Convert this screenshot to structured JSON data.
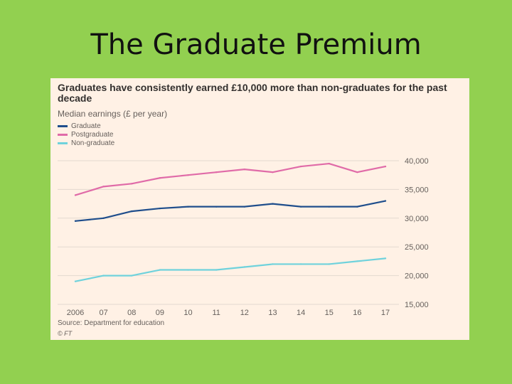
{
  "slide": {
    "title": "The Graduate Premium"
  },
  "colors": {
    "background": "#92d050",
    "card": "#fff1e5",
    "graduate": "#1f4e8c",
    "postgraduate": "#e06ba8",
    "non_graduate": "#6fd2dc"
  },
  "chart_data": {
    "type": "line",
    "title": "Graduates have consistently earned £10,000 more than non-graduates for the past decade",
    "subtitle": "Median earnings (£ per year)",
    "x": [
      "2006",
      "07",
      "08",
      "09",
      "10",
      "11",
      "12",
      "13",
      "14",
      "15",
      "16",
      "17"
    ],
    "series": [
      {
        "name": "Graduate",
        "color": "#1f4e8c",
        "values": [
          29500,
          30000,
          31200,
          31700,
          32000,
          32000,
          32000,
          32500,
          32000,
          32000,
          32000,
          33000
        ]
      },
      {
        "name": "Postgraduate",
        "color": "#e06ba8",
        "values": [
          34000,
          35500,
          36000,
          37000,
          37500,
          38000,
          38500,
          38000,
          39000,
          39500,
          38000,
          39000
        ]
      },
      {
        "name": "Non-graduate",
        "color": "#6fd2dc",
        "values": [
          19000,
          20000,
          20000,
          21000,
          21000,
          21000,
          21500,
          22000,
          22000,
          22000,
          22500,
          23000
        ]
      }
    ],
    "y_ticks": [
      "40,000",
      "35,000",
      "30,000",
      "25,000",
      "20,000",
      "15,000"
    ],
    "ylim": [
      15000,
      40000
    ],
    "grid": true,
    "legend": "top-left",
    "source": "Source: Department for education",
    "credit": "© FT"
  }
}
